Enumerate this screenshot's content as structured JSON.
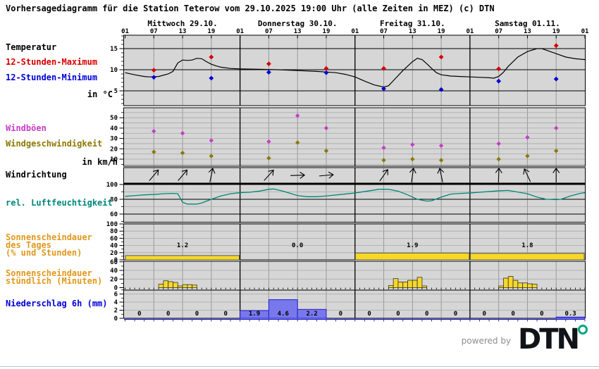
{
  "title": "Vorhersagediagramm für die Station Teterow vom 29.10.2025 19:00 Uhr (alle Zeiten in MEZ)   (c) DTN",
  "footer": {
    "powered_by": "powered by",
    "brand": "DTN"
  },
  "left_labels": {
    "temperature": "Temperatur",
    "max12": "12-Stunden-Maximum",
    "min12": "12-Stunden-Minimum",
    "temp_unit": "in °C",
    "gusts": "Windböen",
    "wind_speed": "Windgeschwindigkeit",
    "wind_unit": "in km/h",
    "wind_dir": "Windrichtung",
    "humidity": "rel. Luftfeuchtigkeit",
    "sun_daily_1": "Sonnenscheindauer",
    "sun_daily_2": "des Tages",
    "sun_daily_3": "(% und Stunden)",
    "sun_hourly_1": "Sonnenscheindauer",
    "sun_hourly_2": "stündlich (Minuten)",
    "precip": "Niederschlag 6h (mm)"
  },
  "colors": {
    "panel_bg": "#d6d6d6",
    "grid_gray": "#9a9a9a",
    "grid_light": "#a8a8a8",
    "temp_line": "#000000",
    "temp_max": "#d80000",
    "temp_min": "#0000d8",
    "gusts": "#c83cc8",
    "wind_speed": "#8c7800",
    "humidity": "#008878",
    "sun_bar": "#f8d826",
    "precip_bar": "#7878ec",
    "precip_border": "#2020cc",
    "orange_label": "#e0981c"
  },
  "x_axis": {
    "time_labels": [
      "01",
      "07",
      "13",
      "19"
    ],
    "end_label": "01",
    "day_labels": [
      "Mittwoch 29.10.",
      "Donnerstag 30.10.",
      "Freitag 31.10.",
      "Samstag 01.11."
    ],
    "hours_total": 96
  },
  "chart_data": [
    {
      "id": "temperature",
      "type": "line",
      "unit": "in °C",
      "yticks": [
        5,
        10,
        15
      ],
      "ylim": [
        1.5,
        18.2
      ],
      "series": [
        {
          "name": "Temperatur",
          "type": "line",
          "color": "#000000",
          "points": [
            [
              0,
              9.3
            ],
            [
              2,
              8.8
            ],
            [
              4,
              8.4
            ],
            [
              5,
              8.3
            ],
            [
              7,
              8.4
            ],
            [
              9,
              9.0
            ],
            [
              10,
              9.6
            ],
            [
              11,
              11.6
            ],
            [
              12,
              12.3
            ],
            [
              13,
              12.2
            ],
            [
              14,
              12.3
            ],
            [
              15,
              12.7
            ],
            [
              16,
              12.6
            ],
            [
              17,
              11.9
            ],
            [
              18,
              11.3
            ],
            [
              19,
              10.9
            ],
            [
              20,
              10.6
            ],
            [
              22,
              10.3
            ],
            [
              24,
              10.2
            ],
            [
              28,
              10.1
            ],
            [
              32,
              10.0
            ],
            [
              36,
              9.8
            ],
            [
              40,
              9.6
            ],
            [
              44,
              9.3
            ],
            [
              46,
              8.9
            ],
            [
              48,
              8.3
            ],
            [
              50,
              7.3
            ],
            [
              52,
              6.4
            ],
            [
              54,
              5.9
            ],
            [
              55,
              6.2
            ],
            [
              56,
              7.4
            ],
            [
              58,
              9.8
            ],
            [
              60,
              11.9
            ],
            [
              61,
              12.7
            ],
            [
              62,
              12.4
            ],
            [
              63,
              11.4
            ],
            [
              64,
              10.3
            ],
            [
              65,
              9.3
            ],
            [
              66,
              8.8
            ],
            [
              68,
              8.5
            ],
            [
              70,
              8.4
            ],
            [
              72,
              8.3
            ],
            [
              74,
              8.2
            ],
            [
              76,
              8.1
            ],
            [
              77,
              8.0
            ],
            [
              78,
              8.4
            ],
            [
              79,
              9.4
            ],
            [
              80,
              10.8
            ],
            [
              82,
              13.0
            ],
            [
              84,
              14.3
            ],
            [
              86,
              15.0
            ],
            [
              87,
              15.0
            ],
            [
              88,
              14.6
            ],
            [
              90,
              13.8
            ],
            [
              92,
              13.0
            ],
            [
              94,
              12.6
            ],
            [
              96,
              12.4
            ]
          ]
        },
        {
          "name": "12-Stunden-Maximum",
          "type": "scatter",
          "color": "#d80000",
          "points": [
            [
              6,
              9.9
            ],
            [
              18,
              13.0
            ],
            [
              30,
              11.4
            ],
            [
              42,
              10.3
            ],
            [
              54,
              10.3
            ],
            [
              66,
              13.0
            ],
            [
              78,
              10.2
            ],
            [
              90,
              15.7
            ]
          ]
        },
        {
          "name": "12-Stunden-Minimum",
          "type": "scatter",
          "color": "#0000d8",
          "points": [
            [
              6,
              8.2
            ],
            [
              18,
              8.0
            ],
            [
              30,
              9.4
            ],
            [
              42,
              9.3
            ],
            [
              54,
              5.5
            ],
            [
              66,
              5.3
            ],
            [
              78,
              7.3
            ],
            [
              90,
              7.8
            ]
          ]
        }
      ]
    },
    {
      "id": "wind",
      "type": "scatter",
      "unit": "in km/h",
      "yticks": [
        10,
        20,
        30,
        40,
        50
      ],
      "ylim": [
        3,
        59
      ],
      "series": [
        {
          "name": "Windböen",
          "type": "scatter",
          "color": "#c83cc8",
          "points": [
            [
              6,
              37
            ],
            [
              12,
              35
            ],
            [
              18,
              28
            ],
            [
              30,
              27
            ],
            [
              36,
              52
            ],
            [
              42,
              40
            ],
            [
              54,
              21
            ],
            [
              60,
              24
            ],
            [
              66,
              23
            ],
            [
              78,
              25
            ],
            [
              84,
              31
            ],
            [
              90,
              40
            ]
          ]
        },
        {
          "name": "Windgeschwindigkeit",
          "type": "scatter",
          "color": "#8c7800",
          "points": [
            [
              6,
              17
            ],
            [
              12,
              16
            ],
            [
              18,
              13
            ],
            [
              30,
              11
            ],
            [
              36,
              26
            ],
            [
              42,
              18
            ],
            [
              54,
              9
            ],
            [
              60,
              10
            ],
            [
              66,
              9
            ],
            [
              78,
              10
            ],
            [
              84,
              13
            ],
            [
              90,
              18
            ]
          ]
        }
      ]
    },
    {
      "id": "wind_direction",
      "type": "arrows",
      "arrows": [
        {
          "h": 6,
          "deg": 40
        },
        {
          "h": 12,
          "deg": 40
        },
        {
          "h": 18,
          "deg": 12
        },
        {
          "h": 30,
          "deg": 42
        },
        {
          "h": 36,
          "deg": 88
        },
        {
          "h": 42,
          "deg": 85
        },
        {
          "h": 54,
          "deg": 35
        },
        {
          "h": 60,
          "deg": 8
        },
        {
          "h": 66,
          "deg": -12
        },
        {
          "h": 78,
          "deg": 2
        },
        {
          "h": 84,
          "deg": -25
        },
        {
          "h": 90,
          "deg": 0
        }
      ]
    },
    {
      "id": "humidity",
      "type": "line",
      "yticks": [
        60,
        80,
        100
      ],
      "ylim": [
        48,
        101
      ],
      "series": [
        {
          "name": "rel. Luftfeuchtigkeit",
          "type": "line",
          "color": "#008878",
          "points": [
            [
              0,
              84
            ],
            [
              2,
              85
            ],
            [
              4,
              86
            ],
            [
              6,
              86.5
            ],
            [
              8,
              87.5
            ],
            [
              10,
              88
            ],
            [
              11,
              87.5
            ],
            [
              12,
              76
            ],
            [
              13,
              73.5
            ],
            [
              15,
              73.5
            ],
            [
              16,
              75
            ],
            [
              18,
              80
            ],
            [
              20,
              84.5
            ],
            [
              22,
              87.5
            ],
            [
              24,
              89
            ],
            [
              26,
              89.5
            ],
            [
              28,
              91
            ],
            [
              30,
              93.5
            ],
            [
              31,
              94
            ],
            [
              33,
              91
            ],
            [
              36,
              85
            ],
            [
              38,
              83.5
            ],
            [
              40,
              83.5
            ],
            [
              42,
              84.5
            ],
            [
              45,
              86.5
            ],
            [
              48,
              88.5
            ],
            [
              51,
              91.5
            ],
            [
              53,
              93.5
            ],
            [
              55,
              93.5
            ],
            [
              57,
              91
            ],
            [
              59,
              86
            ],
            [
              61,
              80
            ],
            [
              63,
              77.5
            ],
            [
              64,
              78
            ],
            [
              66,
              83
            ],
            [
              68,
              87
            ],
            [
              70,
              88
            ],
            [
              72,
              88.5
            ],
            [
              75,
              90
            ],
            [
              78,
              91.5
            ],
            [
              80,
              92
            ],
            [
              84,
              87.5
            ],
            [
              86,
              83
            ],
            [
              88,
              80
            ],
            [
              90,
              79.5
            ],
            [
              91,
              80
            ],
            [
              93,
              84.5
            ],
            [
              95,
              88
            ],
            [
              96,
              89
            ]
          ]
        }
      ]
    },
    {
      "id": "sunshine_daily",
      "type": "bar",
      "yticks": [
        0,
        20,
        40,
        60,
        80,
        100
      ],
      "ylim": [
        0,
        100
      ],
      "day_percent": [
        12,
        0,
        19,
        18
      ],
      "day_hours_labels": [
        "1.2",
        "0.0",
        "1.9",
        "1.8"
      ]
    },
    {
      "id": "sunshine_hourly",
      "type": "bar",
      "yticks": [
        0,
        20,
        40,
        60
      ],
      "ylim": [
        0,
        66
      ],
      "groups": [
        {
          "start_hour": 7,
          "minutes": [
            8,
            16,
            14,
            12,
            4,
            7,
            7,
            6
          ]
        },
        {
          "start_hour": 55,
          "minutes": [
            5,
            21,
            13,
            13,
            17,
            17,
            24,
            4
          ]
        },
        {
          "start_hour": 78,
          "minutes": [
            4,
            22,
            26,
            17,
            11,
            11,
            9,
            8
          ]
        }
      ]
    },
    {
      "id": "precipitation",
      "type": "bar",
      "yticks": [
        0,
        2,
        4,
        6
      ],
      "ylim": [
        0,
        7.2
      ],
      "slot_hours": 6,
      "values": [
        0,
        0,
        0,
        0,
        1.9,
        4.6,
        2.2,
        0,
        0,
        0,
        0,
        0,
        0,
        0,
        0,
        0.3
      ],
      "labels": [
        "0",
        "0",
        "0",
        "0",
        "1.9",
        "4.6",
        "2.2",
        "0",
        "0",
        "0",
        "0",
        "0",
        "0",
        "0",
        "0",
        "0.3"
      ]
    }
  ]
}
